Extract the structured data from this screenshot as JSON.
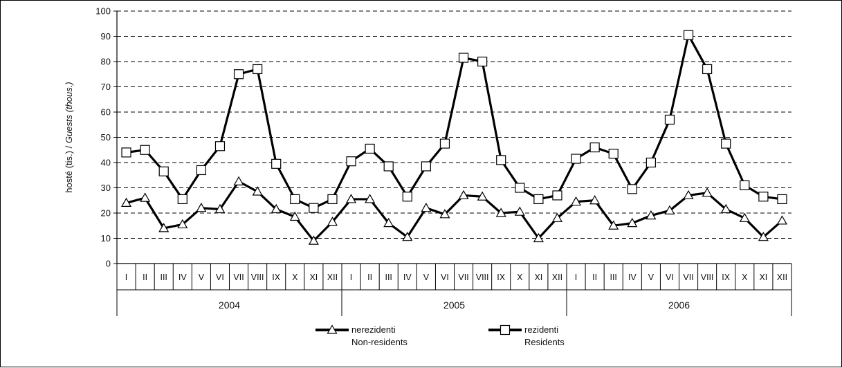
{
  "chart_data": {
    "type": "line",
    "ylabel_pre": "hosté (tis.) / ",
    "ylabel_post": "Guests (thous.)",
    "ylim": [
      0,
      100
    ],
    "yticks": [
      0,
      10,
      20,
      30,
      40,
      50,
      60,
      70,
      80,
      90,
      100
    ],
    "grid": "horizontal dashed",
    "months": [
      "I",
      "II",
      "III",
      "IV",
      "V",
      "VI",
      "VII",
      "VIII",
      "IX",
      "X",
      "XI",
      "XII"
    ],
    "years": [
      "2004",
      "2005",
      "2006"
    ],
    "legend_position": "bottom",
    "series": [
      {
        "name": "nerezidenti",
        "name_en": "Non-residents",
        "marker": "triangle",
        "color": "#000000",
        "values": [
          24,
          26,
          14,
          15.5,
          22,
          21.5,
          32.5,
          28.5,
          21.5,
          18.5,
          9,
          16.5,
          25.5,
          25.5,
          16,
          10.5,
          22,
          19.5,
          27,
          26.5,
          20,
          20.5,
          10,
          18,
          24.5,
          25,
          15,
          16,
          19,
          21,
          27,
          28,
          21.5,
          18,
          10.5,
          17
        ]
      },
      {
        "name": "rezidenti",
        "name_en": "Residents",
        "marker": "square",
        "color": "#000000",
        "values": [
          44,
          45,
          36.5,
          25.5,
          37,
          46.5,
          75,
          77,
          39.5,
          25.5,
          22,
          25.5,
          40.5,
          45.5,
          38.5,
          26.5,
          38.5,
          47.5,
          81.5,
          80,
          41,
          30,
          25.5,
          27,
          41.5,
          46,
          43.5,
          29.5,
          40,
          57,
          90.5,
          77,
          47.5,
          31,
          26.5,
          25.5
        ]
      }
    ]
  }
}
